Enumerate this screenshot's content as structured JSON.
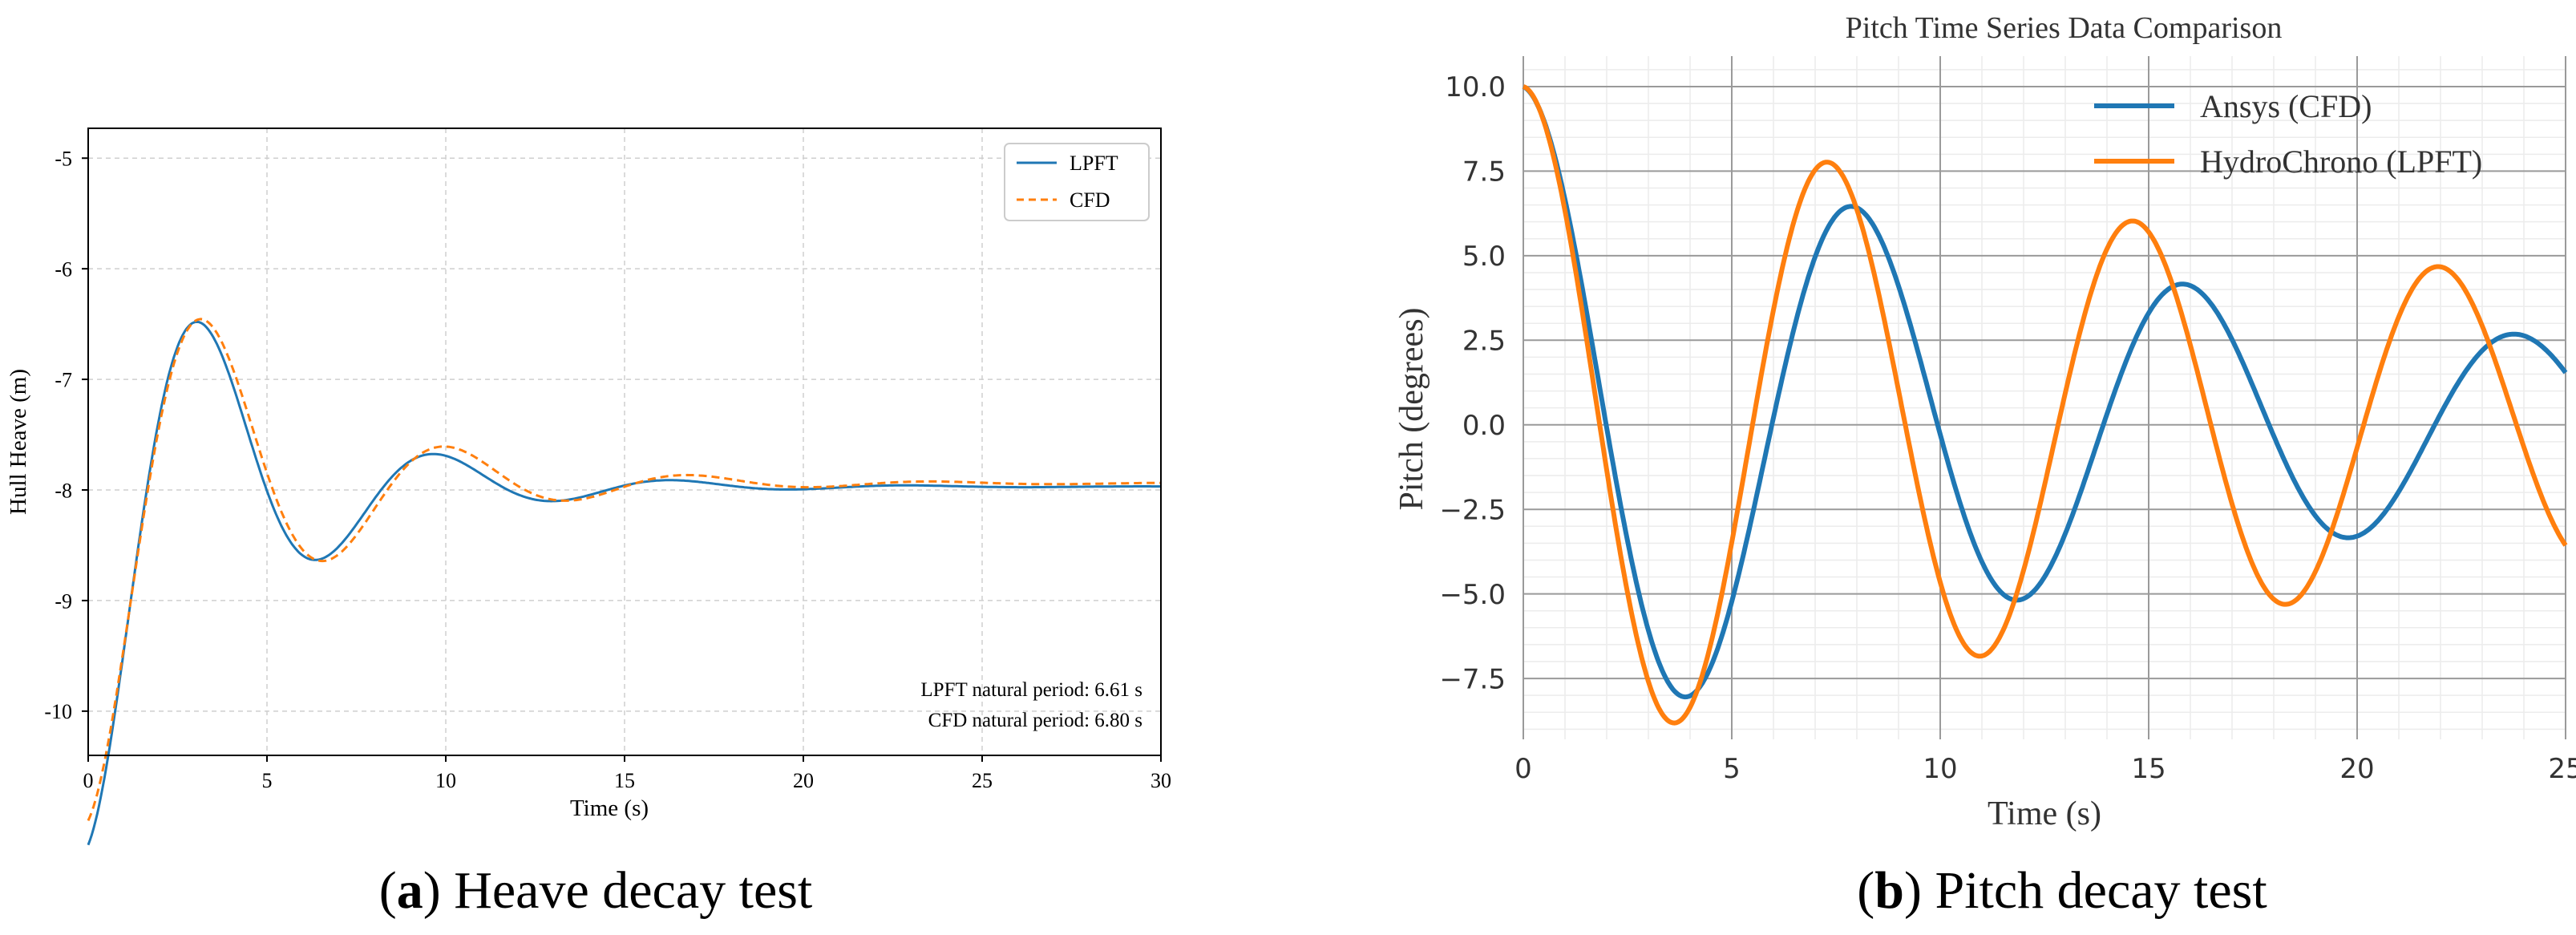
{
  "chart_data": [
    {
      "type": "line",
      "title": "",
      "xlabel": "Time (s)",
      "ylabel": "Hull Heave (m)",
      "xlim": [
        0,
        30
      ],
      "ylim": [
        -10.4,
        -4.73
      ],
      "xticks": [
        0,
        5,
        10,
        15,
        20,
        25,
        30
      ],
      "yticks": [
        -10,
        -9,
        -8,
        -7,
        -6,
        -5
      ],
      "grid": true,
      "legend_position": "upper-right",
      "series": [
        {
          "name": "LPFT",
          "style": "solid",
          "color": "#1f77b4",
          "model": {
            "offset": -7.97,
            "amplitude": -3.24,
            "decay": 0.245,
            "period": 6.61,
            "end": 30
          }
        },
        {
          "name": "CFD",
          "style": "dashed",
          "color": "#ff7f0e",
          "model": {
            "offset": -7.94,
            "amplitude": -3.05,
            "decay": 0.22,
            "period": 6.8,
            "end": 30
          }
        }
      ],
      "annotations": [
        "LPFT natural period: 6.61 s",
        "CFD natural period: 6.80 s"
      ],
      "caption_label": "a",
      "caption_text": " Heave decay test"
    },
    {
      "type": "line",
      "title": "Pitch Time Series Data Comparison",
      "xlabel": "Time (s)",
      "ylabel": "Pitch (degrees)",
      "xlim": [
        0,
        25
      ],
      "ylim": [
        -9.3,
        10.9
      ],
      "xticks": [
        0,
        5,
        10,
        15,
        20,
        25
      ],
      "yticks": [
        10.0,
        7.5,
        5.0,
        2.5,
        0.0,
        -2.5,
        -5.0,
        -7.5
      ],
      "ytick_labels": [
        "10.0",
        "7.5",
        "5.0",
        "2.5",
        "0.0",
        "−2.5",
        "−5.0",
        "−7.5"
      ],
      "grid": true,
      "legend_position": "upper-right",
      "series": [
        {
          "name": "Ansys (CFD)",
          "color": "#1f77b4",
          "model": {
            "offset": 0,
            "amplitude": 10,
            "decay": 0.0553,
            "period": 7.95,
            "end": 25
          }
        },
        {
          "name": "HydroChrono (LPFT)",
          "color": "#ff7f0e",
          "model": {
            "offset": 0,
            "amplitude": 10,
            "decay": 0.0346,
            "period": 7.33,
            "end": 25
          }
        }
      ],
      "caption_label": "b",
      "caption_text": " Pitch decay test"
    }
  ]
}
